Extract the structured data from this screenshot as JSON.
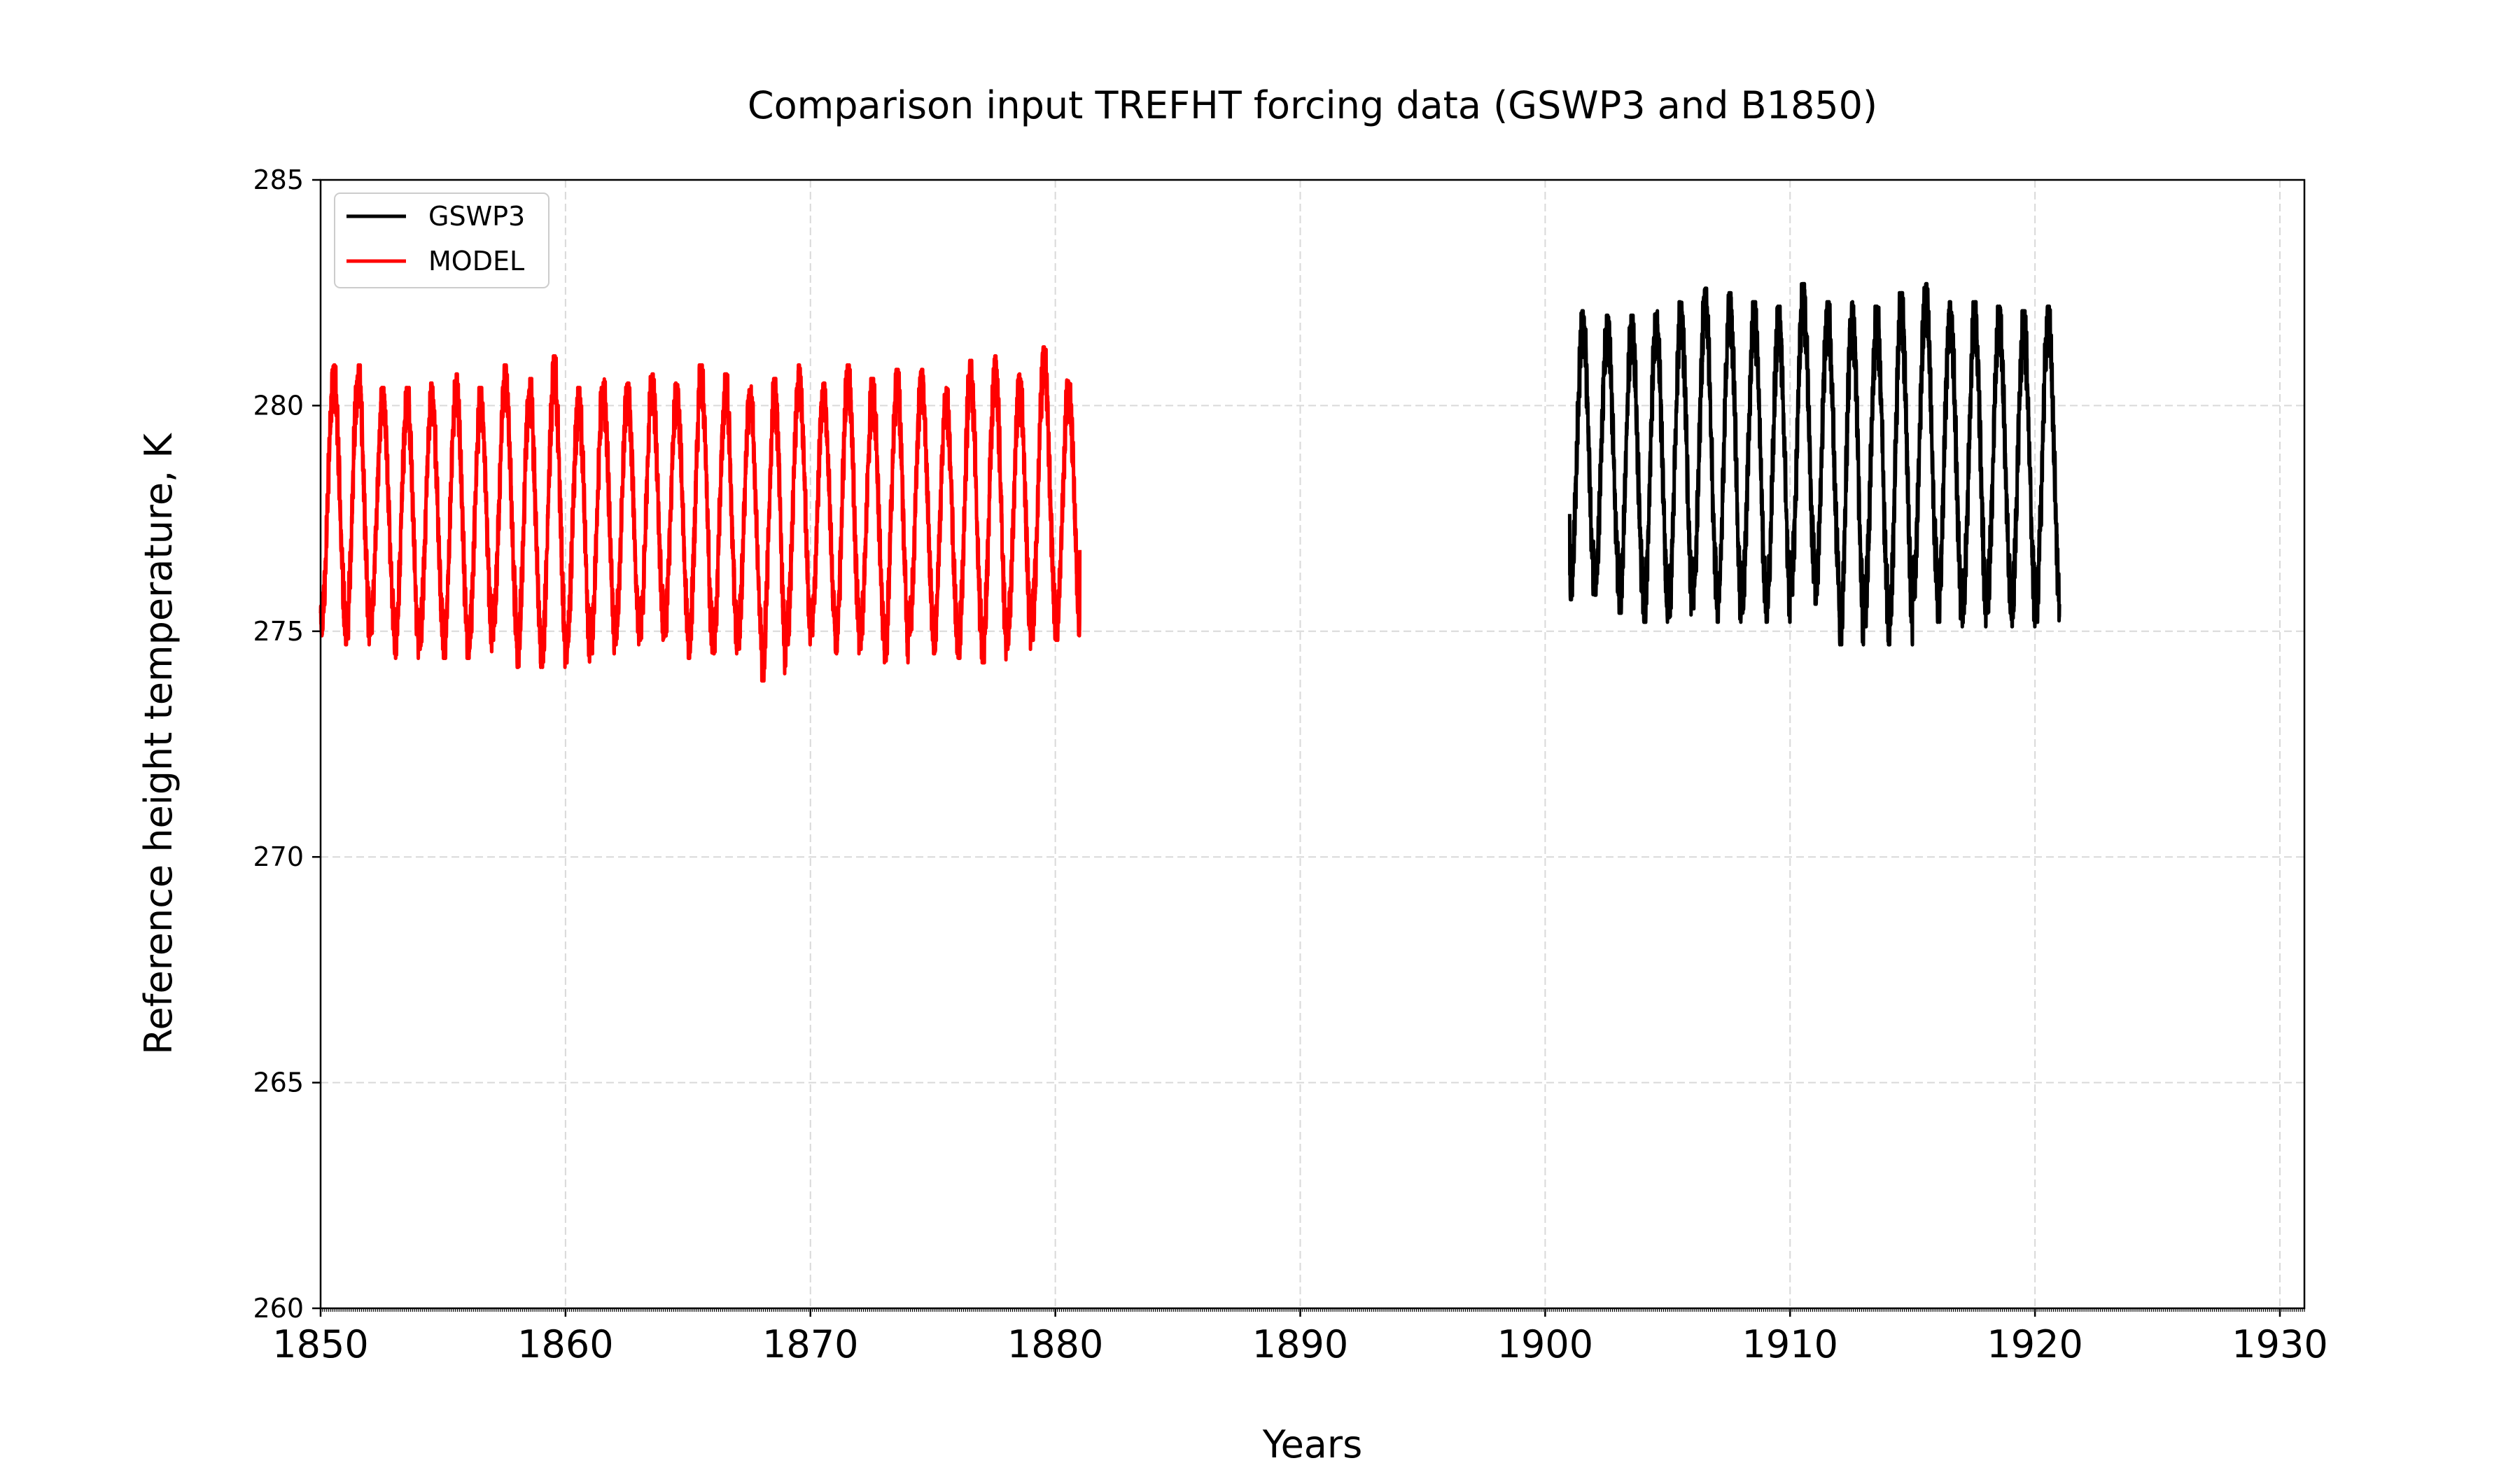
{
  "chart_data": {
    "type": "line",
    "title": "Comparison input TREFHT forcing data (GSWP3 and B1850)",
    "xlabel": "Years",
    "ylabel": "Reference height temperature, K",
    "xlim": [
      1850,
      1931
    ],
    "ylim": [
      260,
      285
    ],
    "x_ticks": [
      1850,
      1860,
      1870,
      1880,
      1890,
      1900,
      1910,
      1920,
      1930
    ],
    "y_ticks": [
      260,
      265,
      270,
      275,
      280,
      285
    ],
    "grid": true,
    "legend_position": "upper-left",
    "series": [
      {
        "name": "GSWP3",
        "color": "#000000",
        "x_start": 1901.0,
        "x_end": 1921.0,
        "y_start": 277.6,
        "y_end": 275.6,
        "annual_maxima": [
          282.1,
          282.0,
          282.0,
          282.1,
          282.3,
          282.6,
          282.5,
          282.3,
          282.2,
          282.7,
          282.3,
          282.3,
          282.2,
          282.5,
          282.7,
          282.3,
          282.3,
          282.2,
          282.1,
          282.2
        ],
        "annual_minima": [
          275.7,
          275.8,
          275.4,
          275.2,
          275.3,
          275.5,
          275.2,
          275.4,
          275.2,
          275.8,
          275.6,
          274.7,
          275.1,
          274.7,
          275.7,
          275.2,
          275.1,
          275.4,
          275.1,
          275.2
        ]
      },
      {
        "name": "MODEL",
        "color": "#ff0000",
        "x_start": 1850.0,
        "x_end": 1881.0,
        "y_start": 275.4,
        "y_end": 276.8,
        "annual_maxima": [
          280.9,
          280.9,
          280.4,
          280.4,
          280.5,
          280.7,
          280.4,
          280.9,
          280.6,
          281.1,
          280.4,
          280.6,
          280.5,
          280.7,
          280.5,
          280.9,
          280.7,
          280.5,
          280.6,
          280.9,
          280.5,
          280.9,
          280.6,
          280.8,
          280.8,
          280.4,
          281.0,
          281.1,
          280.7,
          281.3,
          280.6
        ],
        "annual_minima": [
          274.9,
          274.7,
          274.9,
          274.4,
          274.6,
          274.4,
          274.4,
          274.8,
          274.2,
          274.2,
          274.3,
          274.5,
          274.7,
          274.8,
          274.8,
          274.4,
          274.5,
          274.6,
          273.9,
          274.7,
          274.9,
          274.5,
          274.6,
          274.3,
          274.8,
          274.5,
          274.4,
          274.3,
          274.6,
          274.8,
          274.8
        ]
      }
    ]
  }
}
